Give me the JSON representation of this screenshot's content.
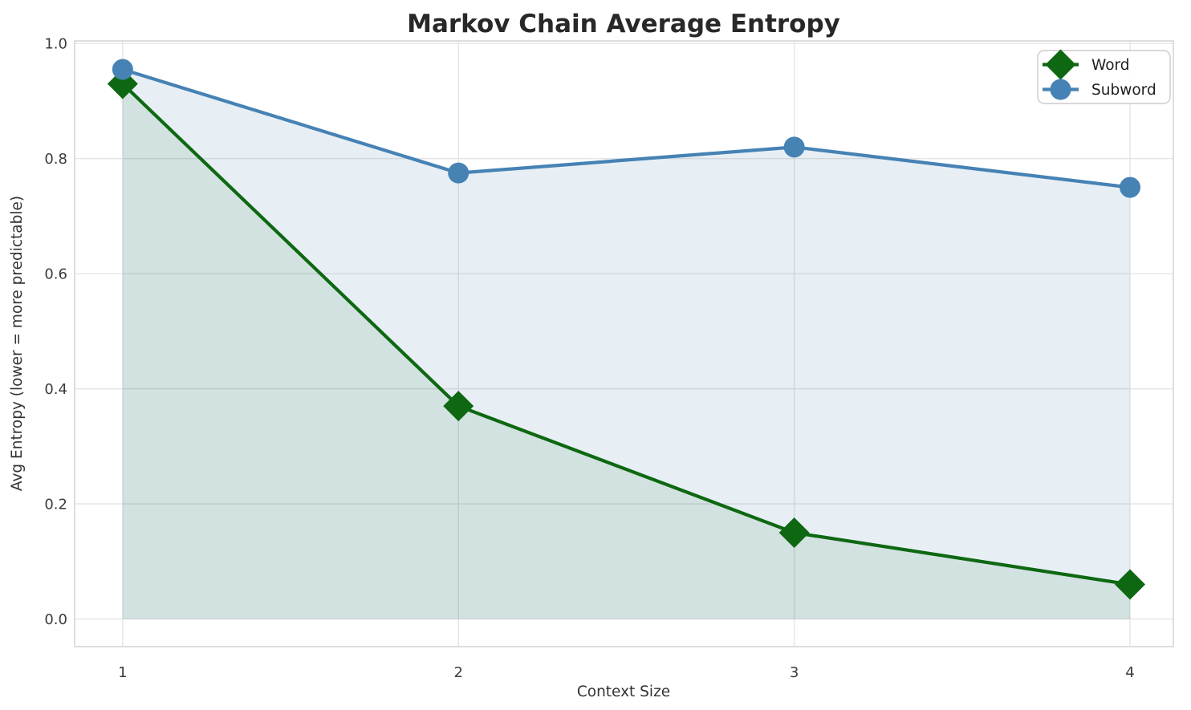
{
  "chart_data": {
    "type": "line",
    "title": "Markov Chain Average Entropy",
    "xlabel": "Context Size",
    "ylabel": "Avg Entropy (lower = more predictable)",
    "x": [
      1,
      2,
      3,
      4
    ],
    "xtick_labels": [
      "1",
      "2",
      "3",
      "4"
    ],
    "yticks": [
      0.0,
      0.2,
      0.4,
      0.6,
      0.8,
      1.0
    ],
    "ytick_labels": [
      "0.0",
      "0.2",
      "0.4",
      "0.6",
      "0.8",
      "1.0"
    ],
    "xlim": [
      0.857,
      4.129
    ],
    "ylim": [
      -0.048,
      1.0045
    ],
    "grid": true,
    "legend": {
      "position": "upper right",
      "entries": [
        "Word",
        "Subword"
      ]
    },
    "series": [
      {
        "name": "Word",
        "marker": "diamond",
        "color": "#0e6812",
        "fill_color": "rgba(15,104,20,0.10)",
        "values": [
          0.93,
          0.37,
          0.15,
          0.06
        ]
      },
      {
        "name": "Subword",
        "marker": "circle",
        "color": "#4682b4",
        "fill_color": "rgba(70,130,180,0.13)",
        "values": [
          0.955,
          0.775,
          0.82,
          0.75
        ]
      }
    ],
    "style": {
      "grid_color": "#e4e4e4",
      "spine_color": "#d6d6d6",
      "background": "#ffffff",
      "line_width": 4.2,
      "circle_radius": 13,
      "diamond_half": 19
    }
  }
}
